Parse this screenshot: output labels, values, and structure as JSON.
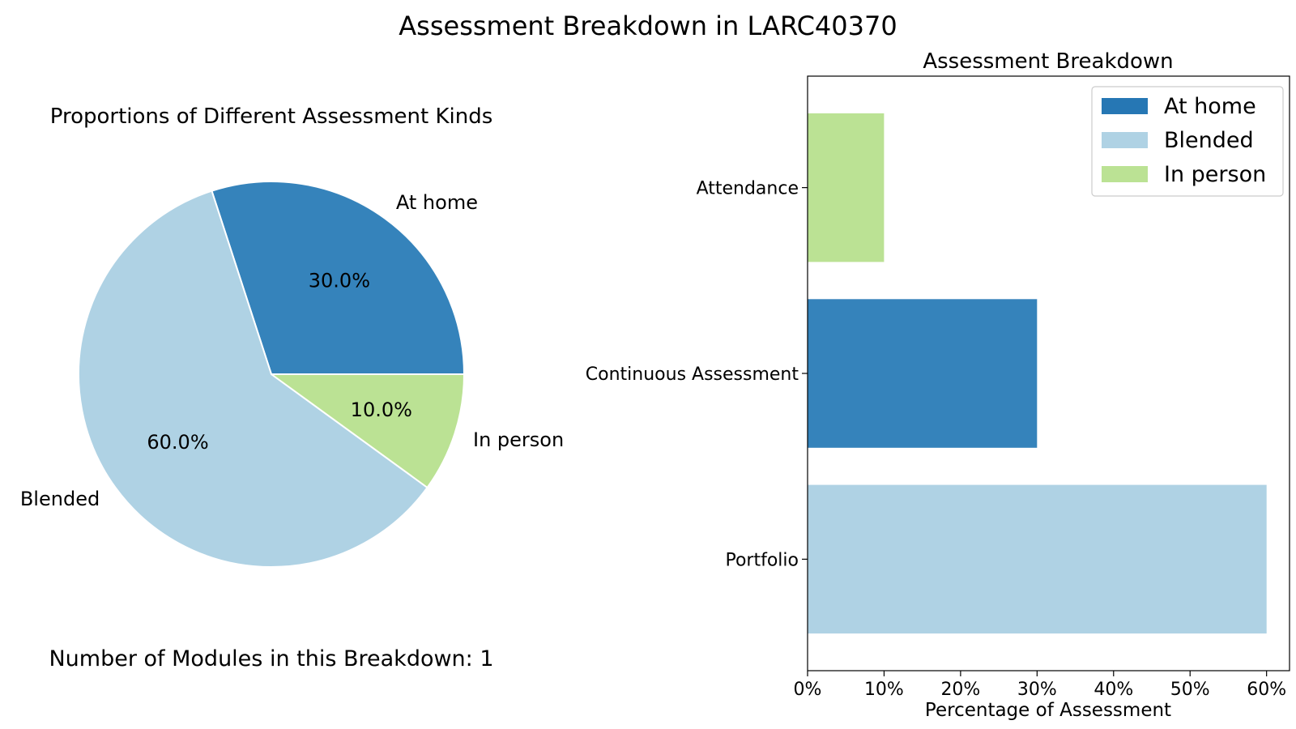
{
  "figure": {
    "title": "Assessment Breakdown in LARC40370",
    "footer": "Number of Modules in this Breakdown: 1"
  },
  "colors": {
    "At home": "#3583bb",
    "Blended": "#afd2e4",
    "In person": "#bbe294",
    "legend_At home": "#2677b4"
  },
  "chart_data": [
    {
      "type": "pie",
      "title": "Proportions of Different Assessment Kinds",
      "slices": [
        {
          "label": "At home",
          "value": 30.0,
          "pct_label": "30.0%"
        },
        {
          "label": "Blended",
          "value": 60.0,
          "pct_label": "60.0%"
        },
        {
          "label": "In person",
          "value": 10.0,
          "pct_label": "10.0%"
        }
      ]
    },
    {
      "type": "bar",
      "orientation": "horizontal",
      "title": "Assessment Breakdown",
      "xlabel": "Percentage of Assessment",
      "ylabel": "",
      "categories": [
        "Attendance",
        "Continuous Assessment",
        "Portfolio"
      ],
      "values": [
        10,
        30,
        60
      ],
      "kinds": [
        "In person",
        "At home",
        "Blended"
      ],
      "xlim": [
        0,
        63
      ],
      "xticks": [
        0,
        10,
        20,
        30,
        40,
        50,
        60
      ],
      "xtick_labels": [
        "0%",
        "10%",
        "20%",
        "30%",
        "40%",
        "50%",
        "60%"
      ],
      "legend": [
        "At home",
        "Blended",
        "In person"
      ],
      "legend_position": "top-right",
      "grid": false
    }
  ]
}
